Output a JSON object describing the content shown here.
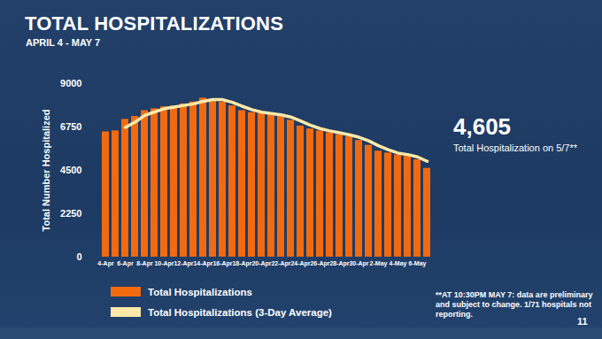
{
  "chart_data": {
    "type": "bar",
    "title": "TOTAL HOSPITALIZATIONS",
    "subtitle": "APRIL 4 - MAY 7",
    "y_label": "Total Number Hospitalized",
    "categories": [
      "4-Apr",
      null,
      "6-Apr",
      null,
      "8-Apr",
      null,
      "10-Apr",
      null,
      "12-Apr",
      null,
      "14-Apr",
      null,
      "16-Apr",
      null,
      "18-Apr",
      null,
      "20-Apr",
      null,
      "22-Apr",
      null,
      "24-Apr",
      null,
      "26-Apr",
      null,
      "28-Apr",
      null,
      "30-Apr",
      null,
      "2-May",
      null,
      "4-May",
      null,
      "6-May",
      null
    ],
    "series": [
      {
        "name": "Total Hospitalizations",
        "type": "bar",
        "color": "#f26a10",
        "values": [
          6500,
          6550,
          7150,
          7300,
          7600,
          7700,
          7800,
          7850,
          7950,
          8050,
          8250,
          8200,
          8050,
          7850,
          7600,
          7500,
          7450,
          7400,
          7300,
          7100,
          6800,
          6650,
          6550,
          6450,
          6350,
          6250,
          6050,
          5800,
          5500,
          5400,
          5300,
          5250,
          5050,
          4605
        ]
      },
      {
        "name": "Total Hospitalizations (3-Day Average)",
        "type": "line",
        "color": "#fde9a9",
        "values": [
          null,
          null,
          6730,
          7000,
          7350,
          7530,
          7700,
          7780,
          7870,
          7950,
          8080,
          8170,
          8170,
          8030,
          7830,
          7650,
          7520,
          7450,
          7380,
          7270,
          7070,
          6850,
          6670,
          6550,
          6450,
          6350,
          6220,
          6030,
          5780,
          5570,
          5400,
          5320,
          5200,
          4970
        ]
      }
    ],
    "ylim": [
      0,
      9000
    ],
    "yticks": [
      0,
      2250,
      4500,
      6750,
      9000
    ],
    "grid": false,
    "legend": "bottom-left",
    "annotations": [
      {
        "label": "4,605",
        "text": "Total Hospitalization on 5/7**"
      }
    ],
    "footnote": "**AT 10:30PM MAY 7: data are preliminary and subject to change. 1/71 hospitals not reporting.",
    "page_number": "11"
  }
}
